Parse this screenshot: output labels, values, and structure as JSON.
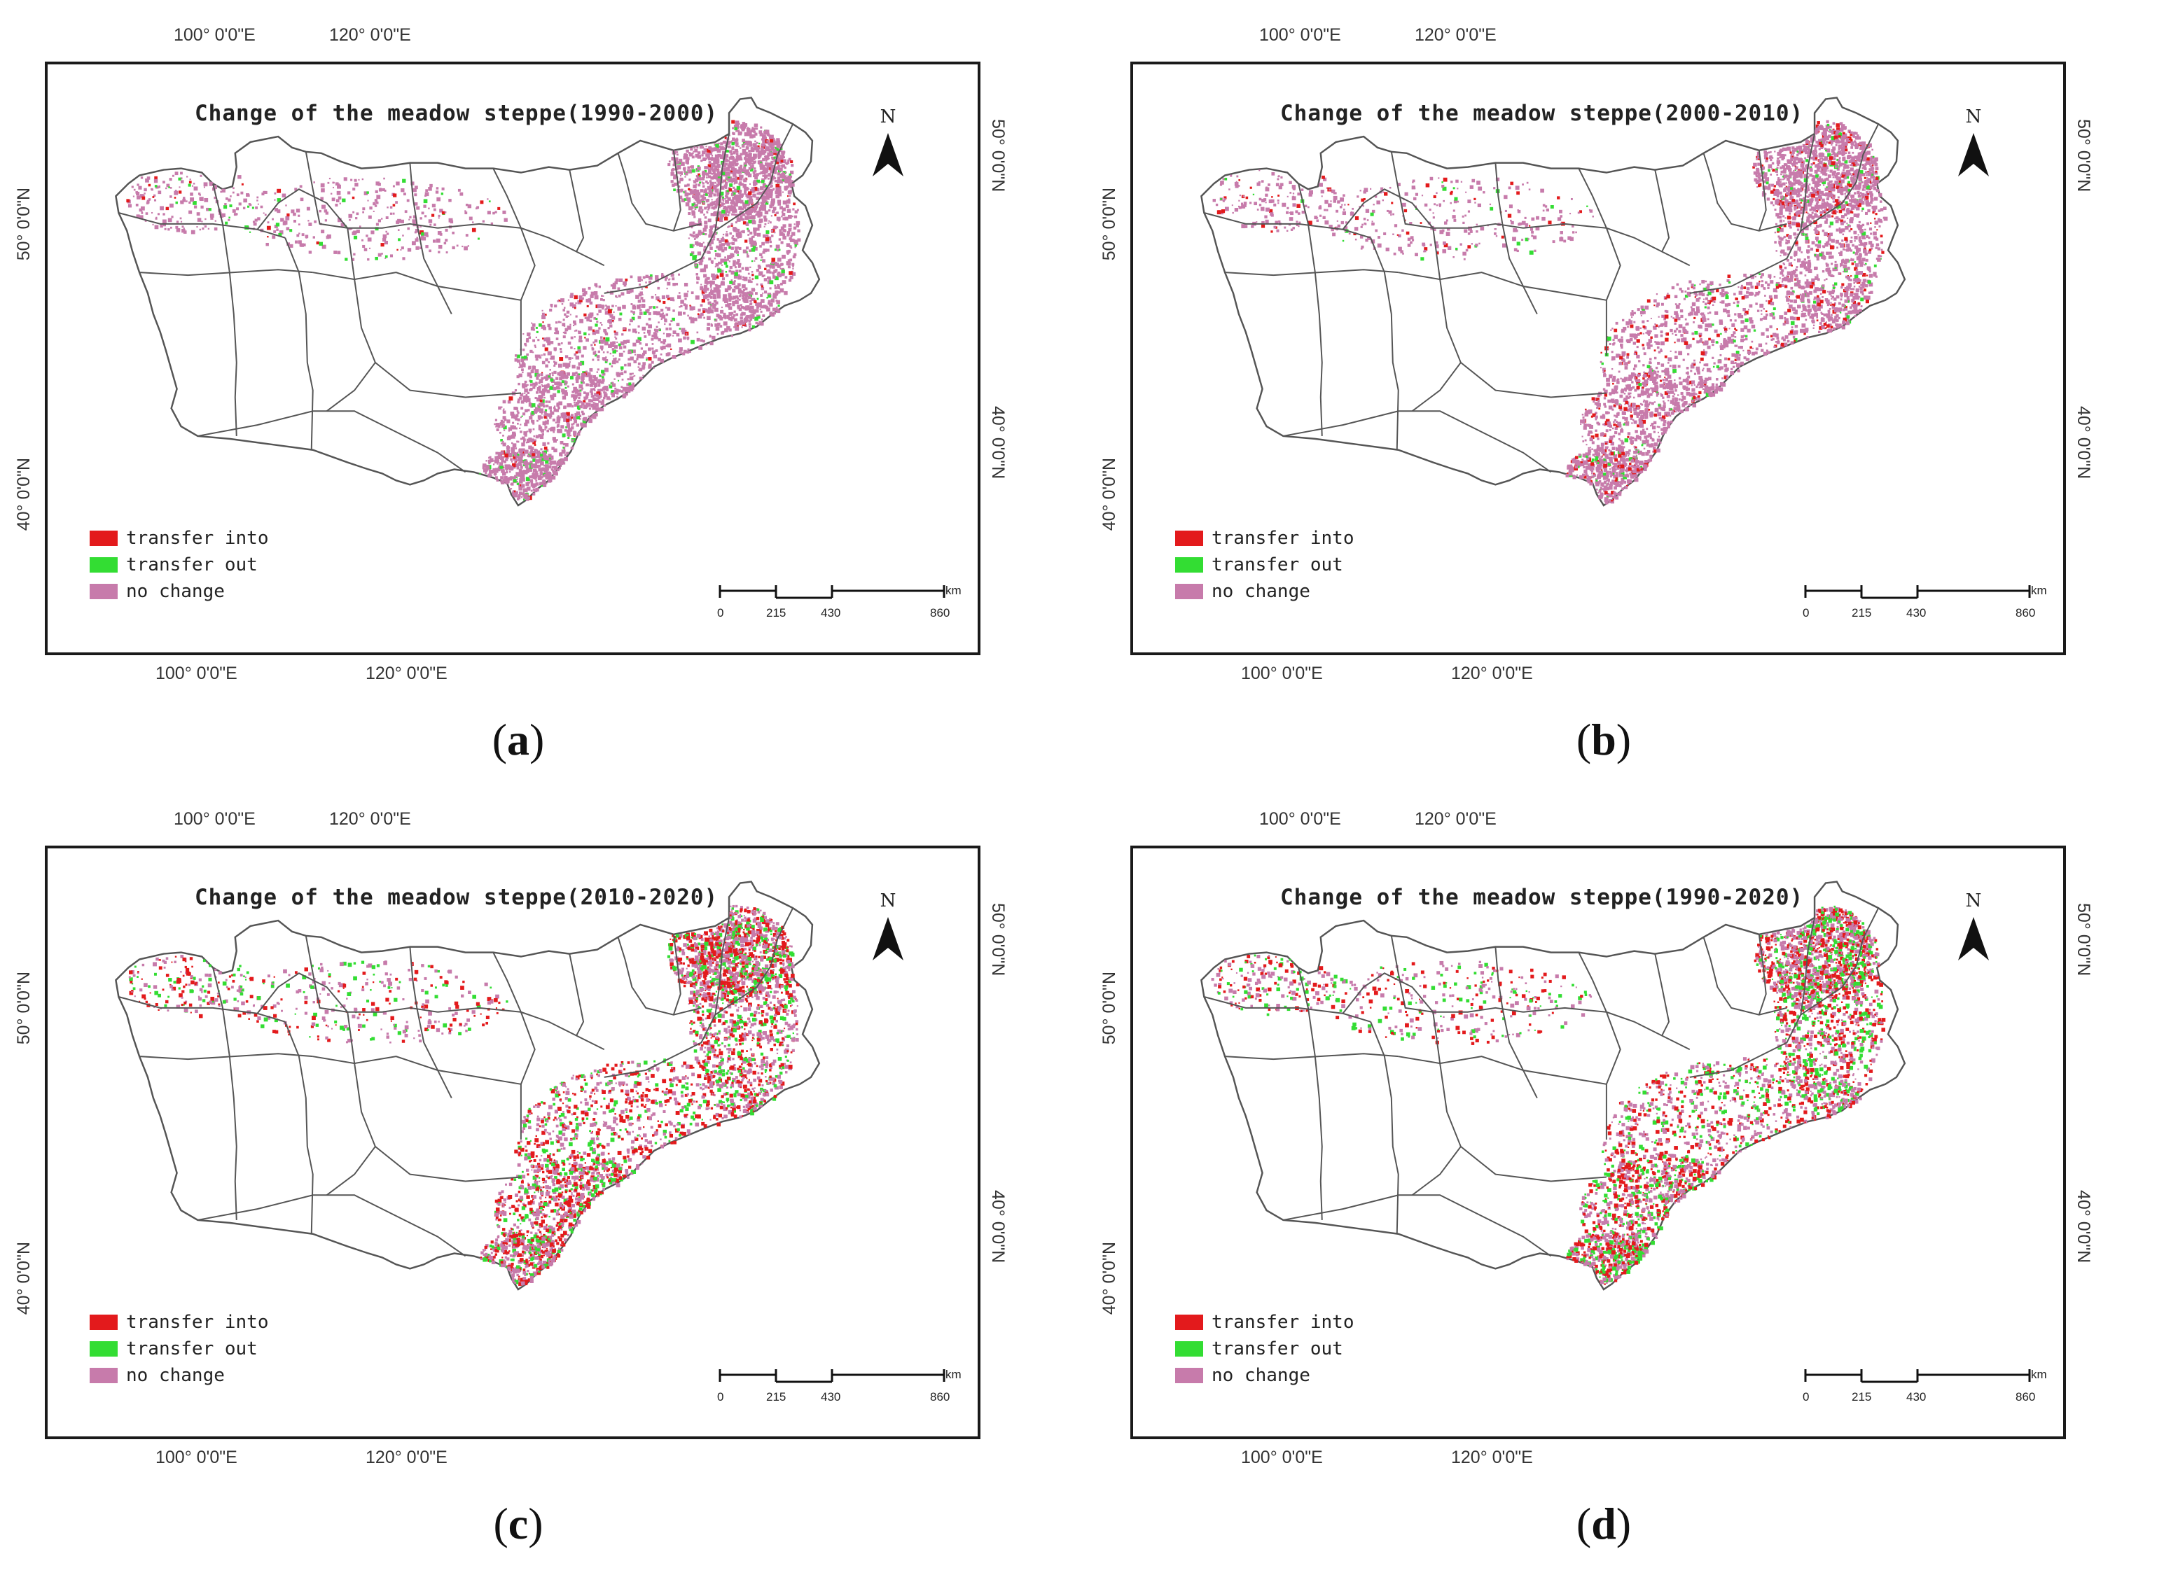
{
  "figure": {
    "panels": [
      {
        "id": "a",
        "label_letter": "a",
        "title": "Change of the meadow steppe(1990-2000)",
        "density": {
          "into": 0.04,
          "out": 0.06,
          "nochange": 0.9
        }
      },
      {
        "id": "b",
        "label_letter": "b",
        "title": "Change of the meadow steppe(2000-2010)",
        "density": {
          "into": 0.12,
          "out": 0.05,
          "nochange": 0.83
        }
      },
      {
        "id": "c",
        "label_letter": "c",
        "title": "Change of the meadow steppe(2010-2020)",
        "density": {
          "into": 0.34,
          "out": 0.22,
          "nochange": 0.44
        }
      },
      {
        "id": "d",
        "label_letter": "d",
        "title": "Change of the meadow steppe(1990-2020)",
        "density": {
          "into": 0.33,
          "out": 0.24,
          "nochange": 0.43
        }
      }
    ],
    "grid": {
      "lon_100": "100° 0'0\"E",
      "lon_120": "120° 0'0\"E",
      "lat_50": "50° 0'0\"N",
      "lat_40": "40° 0'0\"N"
    },
    "north_letter": "N",
    "legend": [
      {
        "label": "transfer into",
        "color": "#e31a1c",
        "key": "into"
      },
      {
        "label": "transfer out",
        "color": "#33dd33",
        "key": "out"
      },
      {
        "label": "no change",
        "color": "#c77bab",
        "key": "nochange"
      }
    ],
    "scalebar": {
      "ticks": [
        "0",
        "215",
        "430",
        "860"
      ],
      "unit": "km"
    },
    "colors": {
      "boundary": "#555555",
      "frame": "#1a1a1a"
    }
  }
}
